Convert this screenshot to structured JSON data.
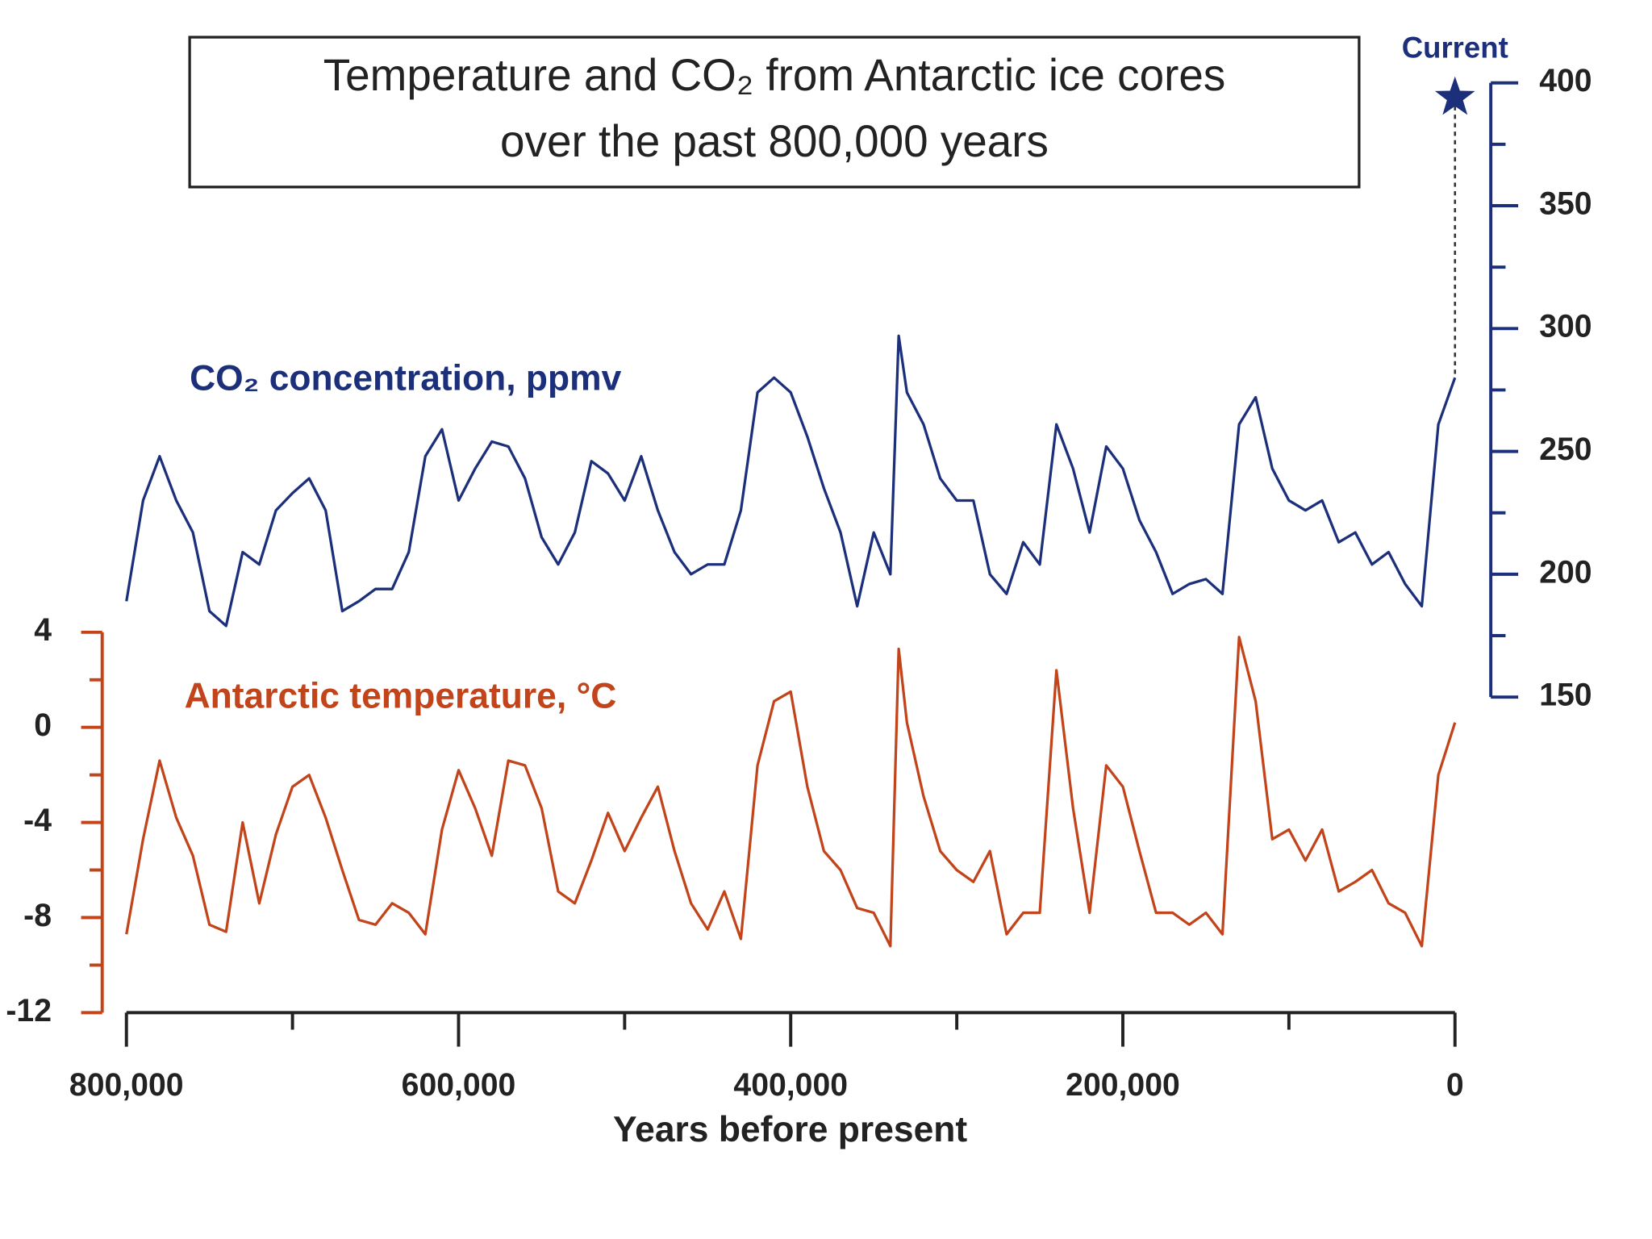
{
  "chart_data": {
    "type": "line",
    "title": "Temperature and CO₂ from Antarctic ice cores",
    "subtitle": "over the past 800,000 years",
    "x_label": "Years before present",
    "x": [
      800000,
      790000,
      780000,
      770000,
      760000,
      750000,
      740000,
      730000,
      720000,
      710000,
      700000,
      690000,
      680000,
      670000,
      660000,
      650000,
      640000,
      630000,
      620000,
      610000,
      600000,
      590000,
      580000,
      570000,
      560000,
      550000,
      540000,
      530000,
      520000,
      510000,
      500000,
      490000,
      480000,
      470000,
      460000,
      450000,
      440000,
      430000,
      420000,
      410000,
      400000,
      390000,
      380000,
      370000,
      360000,
      350000,
      340000,
      335000,
      330000,
      320000,
      310000,
      300000,
      290000,
      280000,
      270000,
      260000,
      250000,
      240000,
      230000,
      220000,
      210000,
      200000,
      190000,
      180000,
      170000,
      160000,
      150000,
      140000,
      130000,
      120000,
      110000,
      100000,
      90000,
      80000,
      70000,
      60000,
      50000,
      40000,
      30000,
      20000,
      10000,
      0
    ],
    "xlim": [
      800000,
      0
    ],
    "xticks": [
      {
        "value": 800000,
        "label": "800,000"
      },
      {
        "value": 600000,
        "label": "600,000"
      },
      {
        "value": 400000,
        "label": "400,000"
      },
      {
        "value": 200000,
        "label": "200,000"
      },
      0
    ],
    "xminorticks": [
      700000,
      500000,
      300000,
      100000
    ],
    "ylim": [
      -12,
      4
    ],
    "yticks": [
      4,
      0,
      -4,
      -8,
      -12
    ],
    "yminorticks": [
      2,
      -2,
      -6,
      -10
    ],
    "y2lim": [
      150,
      400
    ],
    "y2ticks": [
      400,
      350,
      300,
      250,
      200,
      150
    ],
    "y2minorticks": [
      375,
      325,
      275,
      225,
      175
    ],
    "series": [
      {
        "name": "CO₂ concentration, ppmv",
        "color": "#1c2f7a",
        "axis": "y2",
        "values": [
          189,
          230,
          248,
          230,
          217,
          185,
          179,
          209,
          204,
          226,
          233,
          239,
          226,
          185,
          189,
          194,
          194,
          209,
          248,
          259,
          230,
          243,
          254,
          252,
          239,
          215,
          204,
          217,
          246,
          241,
          230,
          248,
          226,
          209,
          200,
          204,
          204,
          226,
          274,
          280,
          274,
          256,
          235,
          217,
          187,
          217,
          200,
          297,
          274,
          261,
          239,
          230,
          230,
          200,
          192,
          213,
          204,
          261,
          243,
          217,
          252,
          243,
          222,
          209,
          192,
          196,
          198,
          192,
          261,
          272,
          243,
          230,
          226,
          230,
          213,
          217,
          204,
          209,
          196,
          187,
          261,
          280
        ]
      },
      {
        "name": "Antarctic temperature, °C",
        "color": "#c2441a",
        "axis": "y",
        "values": [
          -8.7,
          -4.7,
          -1.4,
          -3.8,
          -5.4,
          -8.3,
          -8.6,
          -4.0,
          -7.4,
          -4.5,
          -2.5,
          -2.0,
          -3.8,
          -6.0,
          -8.1,
          -8.3,
          -7.4,
          -7.8,
          -8.7,
          -4.3,
          -1.8,
          -3.4,
          -5.4,
          -1.4,
          -1.6,
          -3.4,
          -6.9,
          -7.4,
          -5.6,
          -3.6,
          -5.2,
          -3.8,
          -2.5,
          -5.2,
          -7.4,
          -8.5,
          -6.9,
          -8.9,
          -1.6,
          1.1,
          1.5,
          -2.5,
          -5.2,
          -6.0,
          -7.6,
          -7.8,
          -9.2,
          3.3,
          0.2,
          -2.9,
          -5.2,
          -6.0,
          -6.5,
          -5.2,
          -8.7,
          -7.8,
          -7.8,
          2.4,
          -3.4,
          -7.8,
          -1.6,
          -2.5,
          -5.2,
          -7.8,
          -7.8,
          -8.3,
          -7.8,
          -8.7,
          3.8,
          1.1,
          -4.7,
          -4.3,
          -5.6,
          -4.3,
          -6.9,
          -6.5,
          -6.0,
          -7.4,
          -7.8,
          -9.2,
          -2.0,
          0.2
        ]
      }
    ],
    "current": {
      "label": "Current",
      "x": 0,
      "value": 394
    }
  }
}
